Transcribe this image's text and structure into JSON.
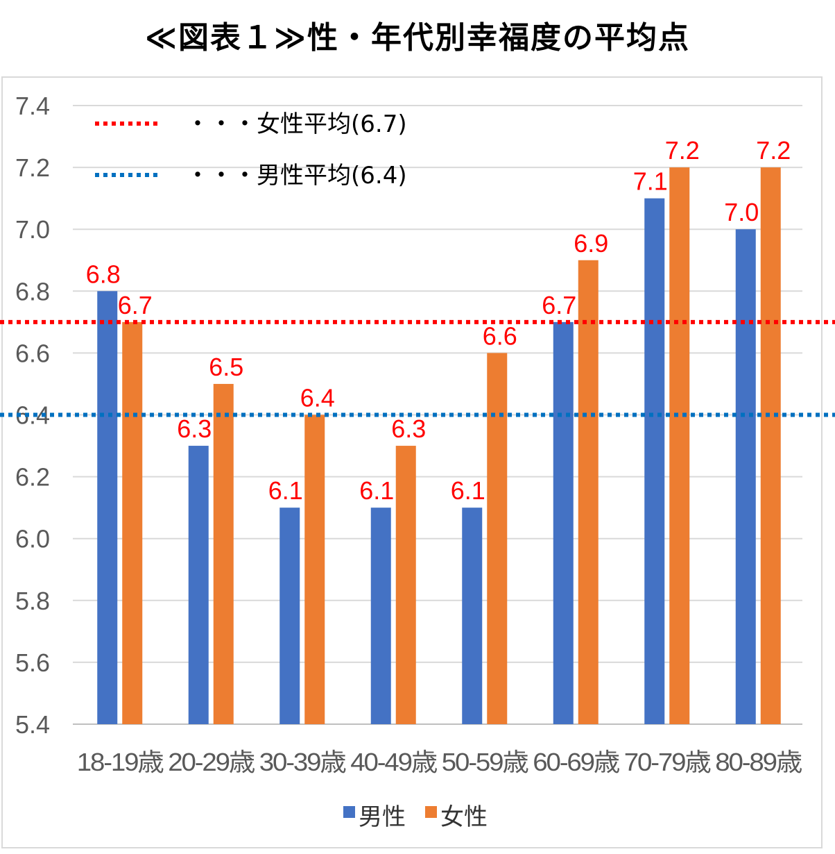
{
  "title": "≪図表１≫性・年代別幸福度の平均点",
  "chart_data": {
    "type": "bar",
    "categories": [
      "18-19歳",
      "20-29歳",
      "30-39歳",
      "40-49歳",
      "50-59歳",
      "60-69歳",
      "70-79歳",
      "80-89歳"
    ],
    "series": [
      {
        "name": "男性",
        "color": "#4472c4",
        "values": [
          6.8,
          6.3,
          6.1,
          6.1,
          6.1,
          6.7,
          7.1,
          7.0
        ],
        "labels": [
          "6.8",
          "6.3",
          "6.1",
          "6.1",
          "6.1",
          "6.7",
          "7.1",
          "7.0"
        ]
      },
      {
        "name": "女性",
        "color": "#ed7d31",
        "values": [
          6.7,
          6.5,
          6.4,
          6.3,
          6.6,
          6.9,
          7.2,
          7.2
        ],
        "labels": [
          "6.7",
          "6.5",
          "6.4",
          "6.3",
          "6.6",
          "6.9",
          "7.2",
          "7.2"
        ]
      }
    ],
    "reference_lines": [
      {
        "label": "・・・女性平均(6.7)",
        "value": 6.7,
        "color": "#ff0000"
      },
      {
        "label": "・・・男性平均(6.4)",
        "value": 6.4,
        "color": "#0070c0"
      }
    ],
    "ylim": [
      5.4,
      7.4
    ],
    "yticks": [
      "5.4",
      "5.6",
      "5.8",
      "6.0",
      "6.2",
      "6.4",
      "6.6",
      "6.8",
      "7.0",
      "7.2",
      "7.4"
    ],
    "ytick_values": [
      5.4,
      5.6,
      5.8,
      6.0,
      6.2,
      6.4,
      6.6,
      6.8,
      7.0,
      7.2,
      7.4
    ],
    "grid": true,
    "legend_position": "bottom-center",
    "reference_legend_position": "top-left",
    "label_color": "#ff0000"
  }
}
